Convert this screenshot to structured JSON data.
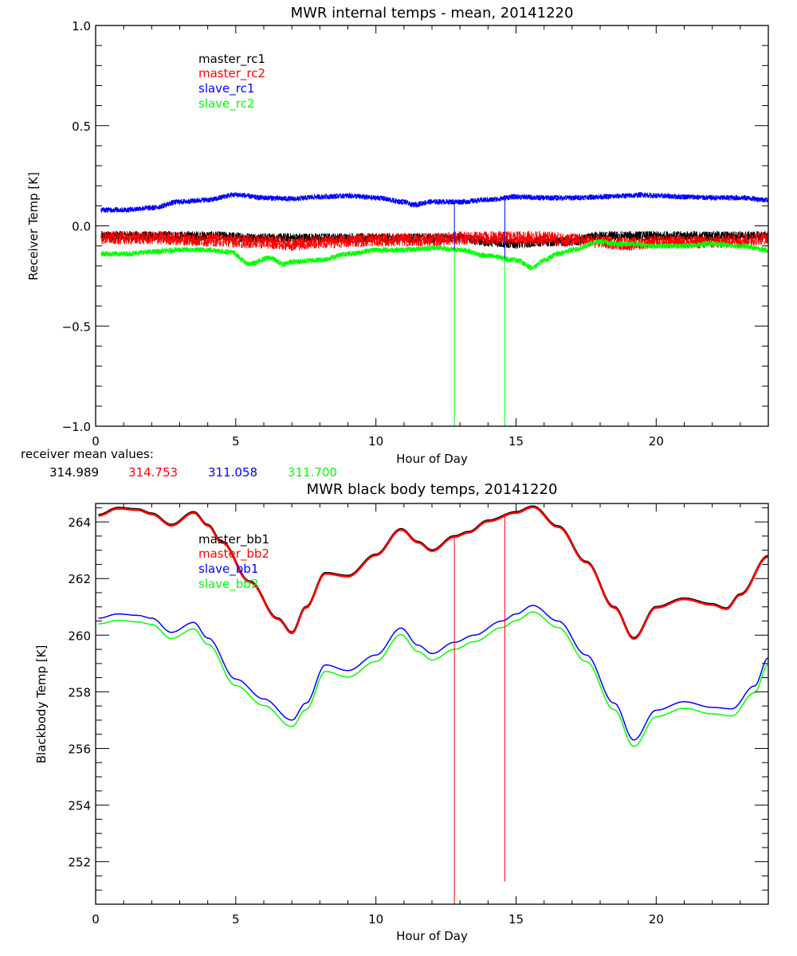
{
  "chart_data": [
    {
      "type": "line",
      "title": "MWR internal temps - mean, 20141220",
      "xlabel": "Hour of Day",
      "ylabel": "Receiver Temp [K]",
      "xlim": [
        0,
        24
      ],
      "ylim": [
        -1.0,
        1.0
      ],
      "xticks": [
        0,
        5,
        10,
        15,
        20
      ],
      "xtick_labels": [
        "0",
        "5",
        "10",
        "15",
        "20"
      ],
      "yticks": [
        -1.0,
        -0.5,
        0.0,
        0.5,
        1.0
      ],
      "ytick_labels": [
        "-1.0",
        "-0.5",
        "0.0",
        "0.5",
        "1.0"
      ],
      "grid": false,
      "legend_position": "top-left",
      "series": [
        {
          "name": "master_rc1",
          "color": "#000000",
          "noise": 0.02,
          "x": [
            0.2,
            2,
            4,
            6,
            8,
            10,
            12,
            13,
            14,
            15,
            16,
            17,
            18,
            19,
            20,
            21,
            22,
            23,
            24
          ],
          "y": [
            -0.05,
            -0.05,
            -0.05,
            -0.06,
            -0.06,
            -0.06,
            -0.06,
            -0.06,
            -0.08,
            -0.09,
            -0.08,
            -0.08,
            -0.05,
            -0.05,
            -0.05,
            -0.05,
            -0.05,
            -0.05,
            -0.05
          ]
        },
        {
          "name": "master_rc2",
          "color": "#ff0000",
          "noise": 0.03,
          "x": [
            0.2,
            2,
            4,
            6,
            7,
            8,
            10,
            12,
            13,
            14,
            15,
            16,
            17,
            18,
            19,
            20,
            21,
            22,
            23,
            24
          ],
          "y": [
            -0.06,
            -0.06,
            -0.07,
            -0.08,
            -0.09,
            -0.08,
            -0.07,
            -0.07,
            -0.06,
            -0.06,
            -0.06,
            -0.06,
            -0.07,
            -0.08,
            -0.09,
            -0.08,
            -0.08,
            -0.08,
            -0.07,
            -0.06
          ]
        },
        {
          "name": "slave_rc1",
          "color": "#0000ff",
          "noise": 0.01,
          "x": [
            0.2,
            1,
            2,
            3,
            4,
            5,
            6,
            7,
            8,
            9,
            10,
            11,
            11.3,
            12,
            13,
            14,
            15,
            16,
            17,
            18,
            19,
            19.5,
            20,
            21,
            22,
            23,
            24
          ],
          "y": [
            0.08,
            0.08,
            0.09,
            0.12,
            0.13,
            0.155,
            0.14,
            0.135,
            0.145,
            0.15,
            0.14,
            0.12,
            0.105,
            0.12,
            0.12,
            0.13,
            0.145,
            0.14,
            0.14,
            0.145,
            0.15,
            0.155,
            0.15,
            0.145,
            0.14,
            0.14,
            0.13
          ]
        },
        {
          "name": "slave_rc2",
          "color": "#00ff00",
          "noise": 0.01,
          "x": [
            0.2,
            1,
            2,
            3,
            4,
            4.8,
            5.5,
            6.2,
            6.7,
            7,
            8,
            9,
            10,
            11,
            12,
            13,
            14,
            15,
            15.6,
            16,
            16.5,
            17,
            18,
            18.7,
            19,
            20,
            21,
            22,
            23,
            24
          ],
          "y": [
            -0.14,
            -0.14,
            -0.13,
            -0.12,
            -0.12,
            -0.13,
            -0.19,
            -0.16,
            -0.19,
            -0.18,
            -0.17,
            -0.14,
            -0.12,
            -0.12,
            -0.11,
            -0.12,
            -0.15,
            -0.17,
            -0.21,
            -0.17,
            -0.14,
            -0.12,
            -0.08,
            -0.09,
            -0.09,
            -0.1,
            -0.1,
            -0.09,
            -0.1,
            -0.12
          ]
        }
      ],
      "vertical_markers": [
        {
          "x": 12.8,
          "color_upper": "#0000ff",
          "color_lower": "#00ff00"
        },
        {
          "x": 14.6,
          "color_upper": "#0000ff",
          "color_lower": "#00ff00"
        }
      ],
      "annotation": {
        "label": "receiver mean values:",
        "values": [
          {
            "text": "314.989",
            "color": "#000000"
          },
          {
            "text": "314.753",
            "color": "#ff0000"
          },
          {
            "text": "311.058",
            "color": "#0000ff"
          },
          {
            "text": "311.700",
            "color": "#00ff00"
          }
        ]
      }
    },
    {
      "type": "line",
      "title": "MWR black body temps, 20141220",
      "xlabel": "Hour of Day",
      "ylabel": "Blackbody Temp [K]",
      "xlim": [
        0,
        24
      ],
      "ylim": [
        250.5,
        264.65
      ],
      "xticks": [
        0,
        5,
        10,
        15,
        20
      ],
      "xtick_labels": [
        "0",
        "5",
        "10",
        "15",
        "20"
      ],
      "yticks": [
        252,
        254,
        256,
        258,
        260,
        262,
        264
      ],
      "ytick_labels": [
        "252",
        "254",
        "256",
        "258",
        "260",
        "262",
        "264"
      ],
      "grid": false,
      "legend_position": "top-left",
      "series": [
        {
          "name": "master_bb1",
          "color": "#000000",
          "x": [
            0.1,
            0.8,
            1.5,
            2.0,
            2.7,
            3.5,
            4.0,
            4.5,
            5.5,
            6.5,
            7.0,
            7.5,
            8.2,
            9.0,
            10.0,
            10.9,
            11.5,
            12.0,
            12.8,
            13.3,
            14.0,
            15.0,
            15.6,
            16.5,
            17.5,
            18.5,
            19.2,
            20.0,
            21.0,
            22.0,
            22.5,
            23.0,
            24.0
          ],
          "y": [
            264.25,
            264.5,
            264.45,
            264.3,
            263.9,
            264.35,
            263.9,
            263.3,
            261.9,
            260.6,
            260.1,
            261.0,
            262.2,
            262.1,
            262.85,
            263.75,
            263.3,
            263.0,
            263.5,
            263.65,
            264.05,
            264.35,
            264.55,
            263.85,
            262.6,
            261.0,
            259.9,
            261.0,
            261.3,
            261.1,
            260.95,
            261.45,
            262.8
          ]
        },
        {
          "name": "master_bb2",
          "color": "#ff0000",
          "x": [
            0.1,
            0.8,
            1.5,
            2.0,
            2.7,
            3.5,
            4.0,
            4.5,
            5.5,
            6.5,
            7.0,
            7.5,
            8.2,
            9.0,
            10.0,
            10.9,
            11.5,
            12.0,
            12.8,
            13.3,
            14.0,
            15.0,
            15.6,
            16.5,
            17.5,
            18.5,
            19.2,
            20.0,
            21.0,
            22.0,
            22.5,
            23.0,
            24.0
          ],
          "y": [
            264.22,
            264.47,
            264.42,
            264.27,
            263.87,
            264.32,
            263.87,
            263.27,
            261.87,
            260.57,
            260.07,
            260.97,
            262.17,
            262.07,
            262.82,
            263.72,
            263.27,
            262.97,
            263.47,
            263.62,
            264.02,
            264.32,
            264.52,
            263.82,
            262.57,
            260.97,
            259.87,
            260.97,
            261.27,
            261.07,
            260.92,
            261.42,
            262.77
          ]
        },
        {
          "name": "slave_bb1",
          "color": "#0000ff",
          "x": [
            0.1,
            0.8,
            1.5,
            2.0,
            2.7,
            3.5,
            4.0,
            5.0,
            6.0,
            7.0,
            7.5,
            8.2,
            9.0,
            10.0,
            10.9,
            11.5,
            12.0,
            12.8,
            13.5,
            14.5,
            15.0,
            15.6,
            16.5,
            17.5,
            18.5,
            19.2,
            20.0,
            21.0,
            22.0,
            22.7,
            23.5,
            24.0
          ],
          "y": [
            260.6,
            260.75,
            260.7,
            260.6,
            260.1,
            260.45,
            259.9,
            258.45,
            257.75,
            257.0,
            257.6,
            258.95,
            258.75,
            259.3,
            260.25,
            259.65,
            259.35,
            259.75,
            260.0,
            260.5,
            260.75,
            261.05,
            260.5,
            259.3,
            257.6,
            256.3,
            257.35,
            257.65,
            257.45,
            257.4,
            258.2,
            259.2
          ]
        },
        {
          "name": "slave_bb2",
          "color": "#00ff00",
          "x": [
            0.1,
            0.8,
            1.5,
            2.0,
            2.7,
            3.5,
            4.0,
            5.0,
            6.0,
            7.0,
            7.5,
            8.2,
            9.0,
            10.0,
            10.9,
            11.5,
            12.0,
            12.8,
            13.5,
            14.5,
            15.0,
            15.6,
            16.5,
            17.5,
            18.5,
            19.2,
            20.0,
            21.0,
            22.0,
            22.7,
            23.5,
            24.0
          ],
          "y": [
            260.4,
            260.52,
            260.47,
            260.38,
            259.88,
            260.22,
            259.68,
            258.22,
            257.52,
            256.77,
            257.37,
            258.72,
            258.52,
            259.07,
            260.02,
            259.42,
            259.12,
            259.5,
            259.77,
            260.27,
            260.52,
            260.82,
            260.27,
            259.07,
            257.37,
            256.07,
            257.12,
            257.42,
            257.22,
            257.15,
            257.97,
            258.97
          ]
        }
      ],
      "vertical_markers": [
        {
          "x": 12.8,
          "y_top": 263.5,
          "y_bottom": 250.5,
          "color": "#ff0000"
        },
        {
          "x": 14.6,
          "y_top": 264.3,
          "y_bottom": 251.3,
          "color": "#ff0000"
        }
      ]
    }
  ]
}
